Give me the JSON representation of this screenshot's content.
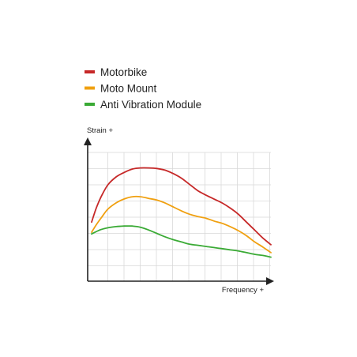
{
  "chart_data": {
    "type": "line",
    "title": "",
    "xlabel": "Frequency +",
    "ylabel": "Strain +",
    "xlim": [
      0,
      11
    ],
    "ylim": [
      0,
      10
    ],
    "grid": true,
    "legend_position": "top-left",
    "series": [
      {
        "name": "Motorbike",
        "color": "#c62828",
        "x": [
          0,
          0.3,
          0.6,
          1,
          1.5,
          2,
          2.5,
          3,
          3.5,
          4,
          4.5,
          5,
          5.5,
          6,
          6.5,
          7,
          7.5,
          8,
          8.5,
          9,
          9.5,
          10,
          10.5,
          11
        ],
        "y": [
          3.9,
          5.2,
          6.2,
          7.2,
          7.9,
          8.3,
          8.6,
          8.7,
          8.7,
          8.65,
          8.5,
          8.2,
          7.8,
          7.25,
          6.7,
          6.3,
          5.95,
          5.6,
          5.15,
          4.6,
          3.9,
          3.2,
          2.5,
          1.9
        ]
      },
      {
        "name": "Moto Mount",
        "color": "#f0a010",
        "x": [
          0,
          0.3,
          0.6,
          1,
          1.5,
          2,
          2.5,
          3,
          3.5,
          4,
          4.5,
          5,
          5.5,
          6,
          6.5,
          7,
          7.5,
          8,
          8.5,
          9,
          9.5,
          10,
          10.5,
          11
        ],
        "y": [
          3.0,
          3.7,
          4.3,
          5.05,
          5.6,
          5.95,
          6.15,
          6.15,
          6.0,
          5.85,
          5.6,
          5.25,
          4.9,
          4.6,
          4.4,
          4.25,
          4.0,
          3.8,
          3.5,
          3.15,
          2.7,
          2.15,
          1.7,
          1.2
        ]
      },
      {
        "name": "Anti Vibration Module",
        "color": "#3aaa35",
        "x": [
          0,
          0.5,
          1,
          1.5,
          2,
          2.5,
          3,
          3.5,
          4,
          4.5,
          5,
          5.5,
          6,
          6.5,
          7,
          7.5,
          8,
          8.5,
          9,
          9.5,
          10,
          10.5,
          11
        ],
        "y": [
          2.85,
          3.2,
          3.4,
          3.5,
          3.55,
          3.55,
          3.45,
          3.2,
          2.9,
          2.6,
          2.35,
          2.15,
          1.95,
          1.85,
          1.75,
          1.65,
          1.55,
          1.45,
          1.35,
          1.2,
          1.05,
          0.95,
          0.8
        ]
      }
    ]
  }
}
